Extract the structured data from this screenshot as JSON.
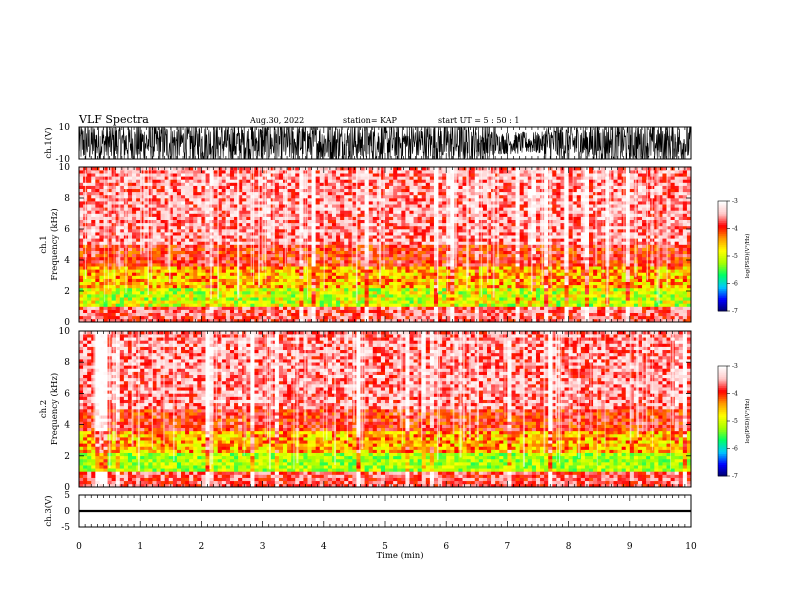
{
  "header": {
    "title": "VLF Spectra",
    "date": "Aug.30, 2022",
    "station": "station= KAP",
    "start_ut": "start  UT =   5  : 50 : 1"
  },
  "chart_data": [
    {
      "type": "line",
      "name": "ch1-waveform",
      "ylabel": "ch.1(V)",
      "ylim": [
        -10,
        10
      ],
      "yticks": [
        "10",
        "-10"
      ],
      "xlim": [
        0,
        10
      ]
    },
    {
      "type": "heatmap",
      "name": "ch1-spectrogram",
      "ylabel": "ch.1\nFrequency  (kHz)",
      "ylim": [
        0,
        10
      ],
      "yticks": [
        "0",
        "2",
        "4",
        "6",
        "8",
        "10"
      ],
      "xlim": [
        0,
        10
      ],
      "colorbar": {
        "title": "log(PSD)(V²/Hz)",
        "range": [
          -7,
          -3
        ],
        "ticks": [
          "-3",
          "-4",
          "-5",
          "-6",
          "-7"
        ]
      }
    },
    {
      "type": "heatmap",
      "name": "ch2-spectrogram",
      "ylabel": "ch.2\nFrequency  (kHz)",
      "ylim": [
        0,
        10
      ],
      "yticks": [
        "0",
        "2",
        "4",
        "6",
        "8",
        "10"
      ],
      "xlim": [
        0,
        10
      ],
      "colorbar": {
        "title": "log(PSD)(V²/Hz)",
        "range": [
          -7,
          -3
        ],
        "ticks": [
          "-3",
          "-4",
          "-5",
          "-6",
          "-7"
        ]
      }
    },
    {
      "type": "line",
      "name": "ch3-waveform",
      "ylabel": "ch.3(V)",
      "ylim": [
        -5,
        5
      ],
      "yticks": [
        "5",
        "0",
        "-5"
      ],
      "xlim": [
        0,
        10
      ]
    }
  ],
  "x_axis": {
    "label": "Time  (min)",
    "ticks": [
      "0",
      "1",
      "2",
      "3",
      "4",
      "5",
      "6",
      "7",
      "8",
      "9",
      "10"
    ]
  },
  "colors": {
    "background": "#ffffff",
    "axes": "#000000",
    "colormap": [
      "#000066",
      "#0000ff",
      "#00c8ff",
      "#00ff66",
      "#a8ff00",
      "#ffff00",
      "#ff9900",
      "#ff0000",
      "#ffc8c8",
      "#ffffff"
    ]
  }
}
